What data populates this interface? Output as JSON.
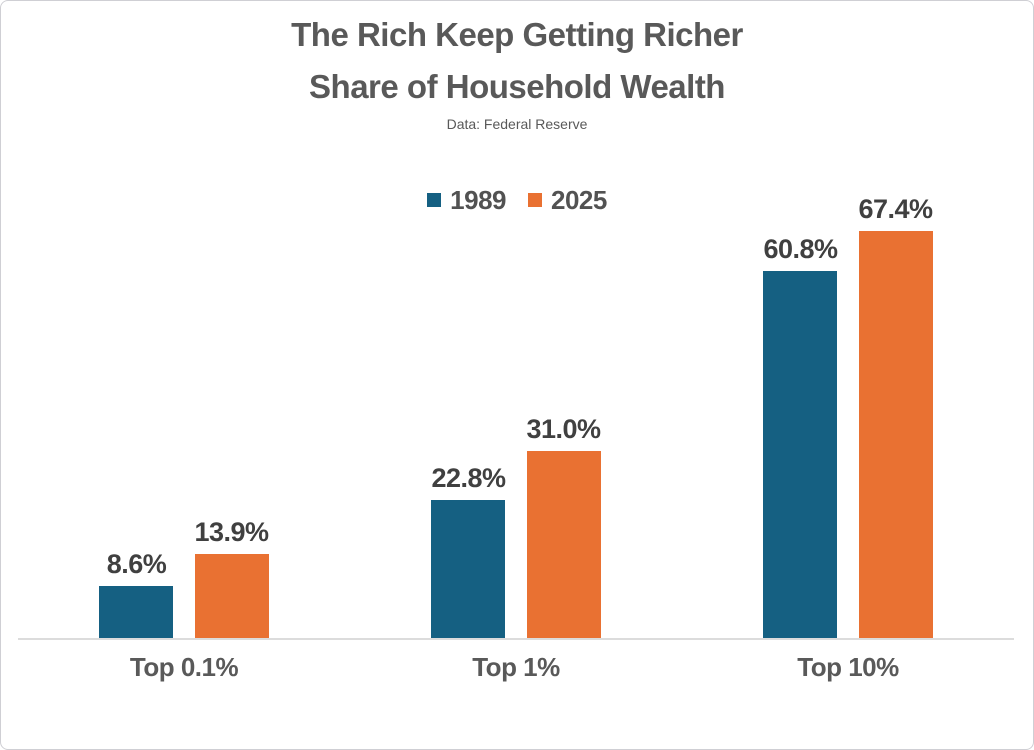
{
  "chart_data": {
    "type": "bar",
    "title_lines": [
      "The Rich Keep Getting Richer",
      "Share of Household Wealth"
    ],
    "subtitle": "Data: Federal Reserve",
    "categories": [
      "Top 0.1%",
      "Top 1%",
      "Top 10%"
    ],
    "series": [
      {
        "name": "1989",
        "color": "#156082",
        "values": [
          8.6,
          22.8,
          60.8
        ],
        "labels": [
          "8.6%",
          "22.8%",
          "60.8%"
        ]
      },
      {
        "name": "2025",
        "color": "#E97132",
        "values": [
          13.9,
          31.0,
          67.4
        ],
        "labels": [
          "13.9%",
          "31.0%",
          "67.4%"
        ]
      }
    ],
    "xlabel": "",
    "ylabel": "",
    "ylim": [
      0,
      79
    ],
    "grid": false,
    "legend_position": "top-center",
    "axis_line_color": "#dcdcdc",
    "text_colors": {
      "title": "#595959",
      "subtitle": "#595959",
      "data_label": "#404040",
      "category_label": "#595959",
      "legend_label": "#525252"
    }
  }
}
